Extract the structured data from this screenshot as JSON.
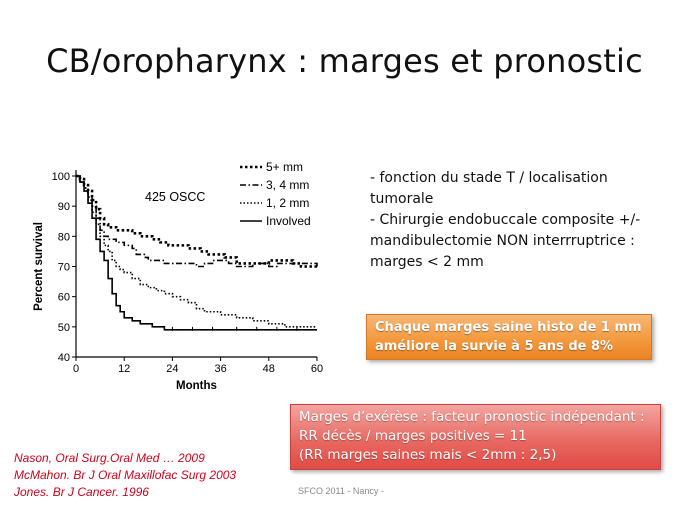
{
  "slide": {
    "title": "CB/oropharynx : marges et pronostic",
    "footer": "SFCO 2011  - Nancy -"
  },
  "chart_data": {
    "type": "line",
    "annotation": "425 OSCC",
    "xlabel": "Months",
    "ylabel": "Percent survival",
    "xlim": [
      0,
      60
    ],
    "ylim": [
      40,
      100
    ],
    "x_ticks": [
      "0",
      "12",
      "24",
      "36",
      "48",
      "60"
    ],
    "y_ticks": [
      "40",
      "50",
      "60",
      "70",
      "80",
      "90",
      "100"
    ],
    "legend_position": "top-right",
    "series": [
      {
        "name": "5+ mm",
        "style": "dotted-thick",
        "points": [
          [
            0,
            100
          ],
          [
            1,
            99
          ],
          [
            2,
            97
          ],
          [
            3,
            95
          ],
          [
            4,
            92
          ],
          [
            5,
            89
          ],
          [
            6,
            86
          ],
          [
            7,
            84
          ],
          [
            8,
            83
          ],
          [
            10,
            82
          ],
          [
            12,
            82
          ],
          [
            14,
            81
          ],
          [
            16,
            80
          ],
          [
            18,
            80
          ],
          [
            19,
            79
          ],
          [
            21,
            78
          ],
          [
            23,
            77
          ],
          [
            25,
            77
          ],
          [
            28,
            76
          ],
          [
            31,
            75
          ],
          [
            33,
            74
          ],
          [
            35,
            74
          ],
          [
            37,
            73
          ],
          [
            39,
            73
          ],
          [
            40,
            71
          ],
          [
            42,
            71
          ],
          [
            44,
            71
          ],
          [
            46,
            71
          ],
          [
            48,
            72
          ],
          [
            50,
            72
          ],
          [
            52,
            72
          ],
          [
            54,
            71
          ],
          [
            56,
            70
          ],
          [
            58,
            70
          ],
          [
            60,
            70
          ]
        ]
      },
      {
        "name": "3, 4 mm",
        "style": "dashdot",
        "points": [
          [
            0,
            100
          ],
          [
            1,
            98
          ],
          [
            2,
            96
          ],
          [
            3,
            93
          ],
          [
            4,
            90
          ],
          [
            5,
            86
          ],
          [
            6,
            82
          ],
          [
            7,
            80
          ],
          [
            8,
            79
          ],
          [
            10,
            78
          ],
          [
            12,
            77
          ],
          [
            14,
            76
          ],
          [
            15,
            74
          ],
          [
            17,
            73
          ],
          [
            18,
            72
          ],
          [
            20,
            72
          ],
          [
            22,
            71
          ],
          [
            24,
            71
          ],
          [
            26,
            71
          ],
          [
            28,
            71
          ],
          [
            30,
            70
          ],
          [
            32,
            71
          ],
          [
            34,
            72
          ],
          [
            36,
            72
          ],
          [
            38,
            71
          ],
          [
            40,
            70
          ],
          [
            42,
            70
          ],
          [
            44,
            71
          ],
          [
            46,
            71
          ],
          [
            48,
            70
          ],
          [
            50,
            71
          ],
          [
            52,
            71
          ],
          [
            54,
            71
          ],
          [
            56,
            71
          ],
          [
            58,
            71
          ],
          [
            60,
            70
          ]
        ]
      },
      {
        "name": "1, 2 mm",
        "style": "dotted-thin",
        "points": [
          [
            0,
            100
          ],
          [
            1,
            98
          ],
          [
            2,
            96
          ],
          [
            3,
            92
          ],
          [
            4,
            88
          ],
          [
            5,
            84
          ],
          [
            6,
            80
          ],
          [
            7,
            77
          ],
          [
            8,
            75
          ],
          [
            9,
            72
          ],
          [
            10,
            70
          ],
          [
            11,
            69
          ],
          [
            12,
            68
          ],
          [
            14,
            66
          ],
          [
            16,
            64
          ],
          [
            18,
            63
          ],
          [
            20,
            62
          ],
          [
            22,
            61
          ],
          [
            24,
            60
          ],
          [
            26,
            59
          ],
          [
            28,
            58
          ],
          [
            30,
            56
          ],
          [
            32,
            55
          ],
          [
            34,
            55
          ],
          [
            36,
            54
          ],
          [
            38,
            54
          ],
          [
            40,
            53
          ],
          [
            42,
            53
          ],
          [
            44,
            52
          ],
          [
            46,
            52
          ],
          [
            48,
            51
          ],
          [
            50,
            51
          ],
          [
            52,
            50
          ],
          [
            54,
            50
          ],
          [
            56,
            50
          ],
          [
            58,
            50
          ],
          [
            60,
            50
          ]
        ]
      },
      {
        "name": "Involved",
        "style": "solid",
        "points": [
          [
            0,
            100
          ],
          [
            1,
            98
          ],
          [
            2,
            95
          ],
          [
            3,
            91
          ],
          [
            4,
            86
          ],
          [
            5,
            79
          ],
          [
            6,
            75
          ],
          [
            7,
            72
          ],
          [
            8,
            66
          ],
          [
            9,
            61
          ],
          [
            10,
            57
          ],
          [
            11,
            55
          ],
          [
            12,
            53
          ],
          [
            14,
            52
          ],
          [
            15,
            52
          ],
          [
            16,
            51
          ],
          [
            18,
            51
          ],
          [
            19,
            50
          ],
          [
            20,
            50
          ],
          [
            22,
            49
          ],
          [
            24,
            49
          ],
          [
            28,
            49
          ],
          [
            32,
            49
          ],
          [
            36,
            49
          ],
          [
            40,
            49
          ],
          [
            44,
            49
          ],
          [
            48,
            49
          ],
          [
            52,
            49
          ],
          [
            56,
            49
          ],
          [
            60,
            49
          ]
        ]
      }
    ]
  },
  "bullets": [
    "- fonction du stade T / localisation",
    "tumorale",
    "- Chirurgie endobuccale composite +/-",
    "mandibulectomie NON interrruptrice :",
    "marges < 2 mm"
  ],
  "orange_box": {
    "lines": [
      "Chaque marges saine histo de 1 mm",
      "améliore la survie à 5 ans de 8%"
    ],
    "color": "#f39a3e"
  },
  "red_box": {
    "lines": [
      "Marges d’exérèse : facteur pronostic indépendant :",
      "RR décès / marges positives = 11",
      "(RR marges saines mais < 2mm : 2,5)"
    ],
    "color": "#e86a63"
  },
  "references": {
    "lines": [
      "Nason, Oral Surg.Oral Med … 2009",
      "McMahon. Br J Oral Maxillofac Surg 2003",
      "Jones. Br J Cancer. 1996"
    ],
    "color": "#d0021b"
  }
}
